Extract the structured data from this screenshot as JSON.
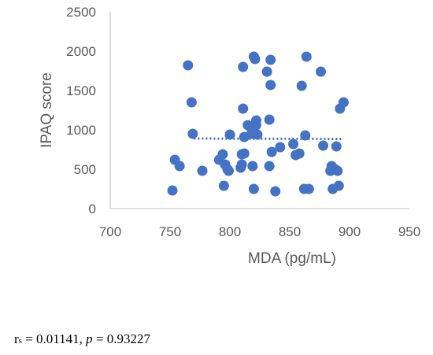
{
  "chart_data": {
    "type": "scatter",
    "xlabel": "MDA (pg/mL)",
    "ylabel": "IPAQ score",
    "xlim": [
      700,
      950
    ],
    "ylim": [
      0,
      2500
    ],
    "x_ticks": [
      "700",
      "750",
      "800",
      "850",
      "900",
      "950"
    ],
    "y_ticks": [
      "0",
      "500",
      "1000",
      "1500",
      "2000",
      "2500"
    ],
    "grid": false,
    "legend": "none",
    "trendline": {
      "type": "linear",
      "style": "dotted",
      "x_start": 770,
      "x_end": 895,
      "y_start": 890,
      "y_end": 885
    },
    "marker_color": "#4472C4",
    "series": [
      {
        "x": [
          752,
          754,
          758,
          765,
          768,
          769,
          777,
          791,
          794,
          795,
          796,
          798,
          799,
          800,
          809,
          810,
          810,
          811,
          811,
          812,
          812,
          815,
          817,
          818,
          819,
          820,
          820,
          821,
          822,
          822,
          823,
          831,
          833,
          833,
          834,
          834,
          835,
          838,
          842,
          853,
          855,
          858,
          860,
          862,
          863,
          864,
          866,
          876,
          878,
          884,
          885,
          886,
          888,
          889,
          890,
          891,
          892,
          895
        ],
        "y": [
          230,
          620,
          540,
          1820,
          1350,
          950,
          480,
          620,
          690,
          290,
          560,
          500,
          480,
          940,
          520,
          560,
          690,
          1270,
          1800,
          910,
          700,
          1060,
          1040,
          950,
          540,
          250,
          1930,
          1900,
          1120,
          1060,
          940,
          1740,
          540,
          1130,
          1570,
          1890,
          720,
          220,
          780,
          820,
          680,
          700,
          1560,
          250,
          930,
          1930,
          250,
          1740,
          800,
          480,
          540,
          250,
          500,
          790,
          480,
          290,
          1270,
          1350
        ]
      }
    ]
  },
  "stats": {
    "r_symbol": "r",
    "r_subscript": "s",
    "r_value": " = 0.01141, ",
    "p_symbol": "p",
    "p_value": " = 0.93227"
  }
}
